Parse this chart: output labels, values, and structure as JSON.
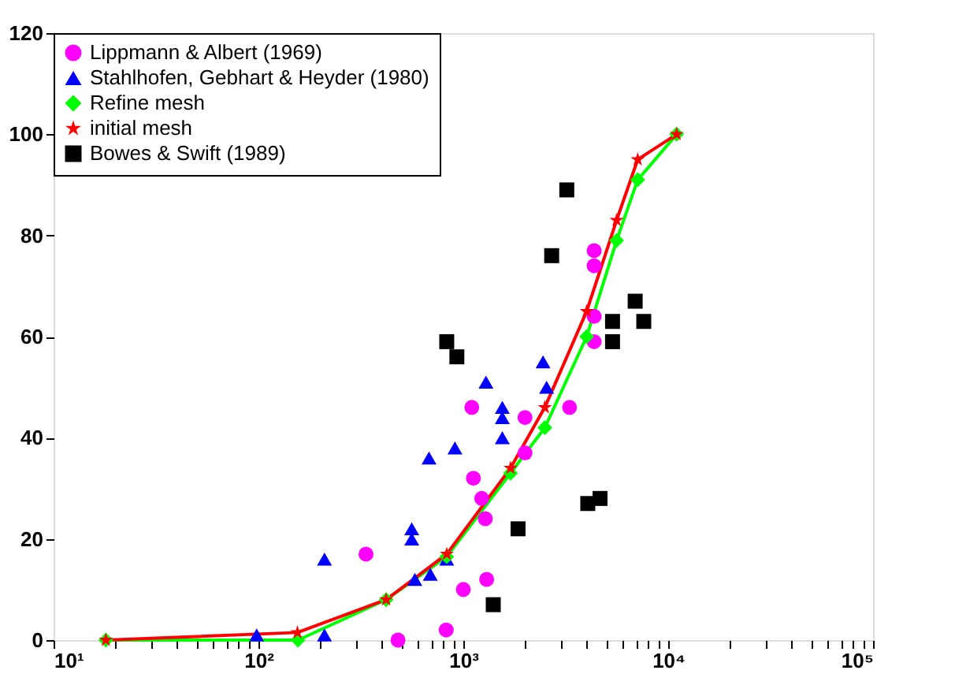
{
  "chart_data": {
    "type": "scatter",
    "log": "x",
    "grid": false,
    "legend": "top left",
    "xlim": [
      10,
      100000
    ],
    "ylim": [
      0,
      120
    ],
    "xticks": [
      {
        "value": 10,
        "label": "10¹"
      },
      {
        "value": 20,
        "label": null
      },
      {
        "value": 30,
        "label": null
      },
      {
        "value": 40,
        "label": null
      },
      {
        "value": 50,
        "label": null
      },
      {
        "value": 60,
        "label": null
      },
      {
        "value": 70,
        "label": null
      },
      {
        "value": 80,
        "label": null
      },
      {
        "value": 90,
        "label": null
      },
      {
        "value": 100,
        "label": "10²"
      },
      {
        "value": 200,
        "label": null
      },
      {
        "value": 300,
        "label": null
      },
      {
        "value": 400,
        "label": null
      },
      {
        "value": 500,
        "label": null
      },
      {
        "value": 600,
        "label": null
      },
      {
        "value": 700,
        "label": null
      },
      {
        "value": 800,
        "label": null
      },
      {
        "value": 900,
        "label": null
      },
      {
        "value": 1000,
        "label": "10³"
      },
      {
        "value": 2000,
        "label": null
      },
      {
        "value": 3000,
        "label": null
      },
      {
        "value": 4000,
        "label": null
      },
      {
        "value": 5000,
        "label": null
      },
      {
        "value": 6000,
        "label": null
      },
      {
        "value": 7000,
        "label": null
      },
      {
        "value": 8000,
        "label": null
      },
      {
        "value": 9000,
        "label": null
      },
      {
        "value": 10000,
        "label": "10⁴"
      },
      {
        "value": 20000,
        "label": null
      },
      {
        "value": 30000,
        "label": null
      },
      {
        "value": 40000,
        "label": null
      },
      {
        "value": 50000,
        "label": null
      },
      {
        "value": 60000,
        "label": null
      },
      {
        "value": 70000,
        "label": null
      },
      {
        "value": 80000,
        "label": null
      },
      {
        "value": 90000,
        "label": null
      },
      {
        "value": 100000,
        "label": "10⁵"
      }
    ],
    "yticks": [
      0,
      20,
      40,
      60,
      80,
      100,
      120
    ],
    "series": [
      {
        "name": "Lippmann & Albert (1969)",
        "marker": "circle",
        "color": "#ff00ff",
        "x": [
          335,
          480,
          825,
          1000,
          1300,
          1100,
          1120,
          1230,
          1280,
          2000,
          2000,
          3300,
          4350,
          4350,
          4350,
          4350
        ],
        "values": [
          17,
          0,
          2,
          10,
          12,
          46,
          32,
          28,
          24,
          44,
          37,
          46,
          77,
          74,
          64,
          59
        ]
      },
      {
        "name": "Stahlhofen, Gebhart & Heyder (1980)",
        "marker": "triangle",
        "color": "#0000ff",
        "x": [
          98,
          210,
          210,
          560,
          560,
          580,
          690,
          680,
          910,
          830,
          1290,
          1550,
          1550,
          1550,
          2450,
          2550
        ],
        "values": [
          1,
          1,
          16,
          22,
          20,
          12,
          13,
          36,
          38,
          16,
          51,
          46,
          44,
          40,
          55,
          50
        ]
      },
      {
        "name": "Refine mesh",
        "type": "line",
        "marker": "diamond",
        "color": "#00ff00",
        "x": [
          18,
          156,
          420,
          830,
          1700,
          2500,
          4000,
          5600,
          7100,
          11000
        ],
        "values": [
          0,
          0,
          8,
          16.5,
          33,
          42,
          60,
          79,
          91,
          100
        ]
      },
      {
        "name": "initial mesh",
        "type": "line",
        "marker": "star",
        "color": "#ff0000",
        "x": [
          18,
          155,
          420,
          830,
          1700,
          2500,
          4000,
          5600,
          7100,
          11000
        ],
        "values": [
          0,
          1.5,
          8,
          17,
          34,
          46,
          65,
          83,
          95,
          100
        ]
      },
      {
        "name": "Bowes & Swift (1989)",
        "marker": "square",
        "color": "#000000",
        "x": [
          830,
          930,
          1400,
          1850,
          2700,
          3200,
          4050,
          4650,
          5350,
          5350,
          6900,
          7600
        ],
        "values": [
          59,
          56,
          7,
          22,
          76,
          89,
          27,
          28,
          63,
          59,
          67,
          63
        ]
      }
    ]
  }
}
